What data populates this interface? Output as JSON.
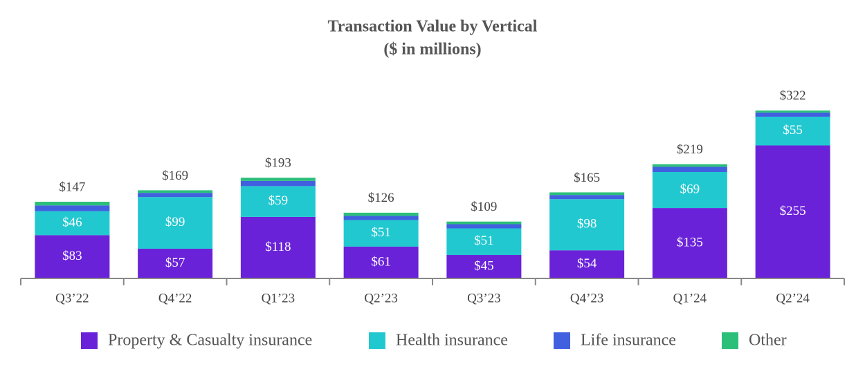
{
  "chart_data": {
    "type": "stacked-bar",
    "title": "Transaction Value by Vertical",
    "subtitle": "($ in millions)",
    "categories": [
      "Q3’22",
      "Q4’22",
      "Q1’23",
      "Q2’23",
      "Q3’23",
      "Q4’23",
      "Q1’24",
      "Q2’24"
    ],
    "series": [
      {
        "name": "Property & Casualty insurance",
        "color": "#6a22d8",
        "values": [
          83,
          57,
          118,
          61,
          45,
          54,
          135,
          255
        ],
        "value_labels": [
          "$83",
          "$57",
          "$118",
          "$61",
          "$45",
          "$54",
          "$135",
          "$255"
        ]
      },
      {
        "name": "Health insurance",
        "color": "#22c8d0",
        "values": [
          46,
          99,
          59,
          51,
          51,
          98,
          69,
          55
        ],
        "value_labels": [
          "$46",
          "$99",
          "$59",
          "$51",
          "$51",
          "$98",
          "$69",
          "$55"
        ]
      },
      {
        "name": "Life insurance",
        "color": "#4060e0",
        "values": [
          11,
          8,
          10,
          8,
          8,
          8,
          10,
          8
        ]
      },
      {
        "name": "Other",
        "color": "#2bbf7a",
        "values": [
          7,
          5,
          6,
          6,
          5,
          5,
          5,
          4
        ]
      }
    ],
    "totals": [
      147,
      169,
      193,
      126,
      109,
      165,
      219,
      322
    ],
    "total_labels": [
      "$147",
      "$169",
      "$193",
      "$126",
      "$109",
      "$165",
      "$219",
      "$322"
    ]
  }
}
